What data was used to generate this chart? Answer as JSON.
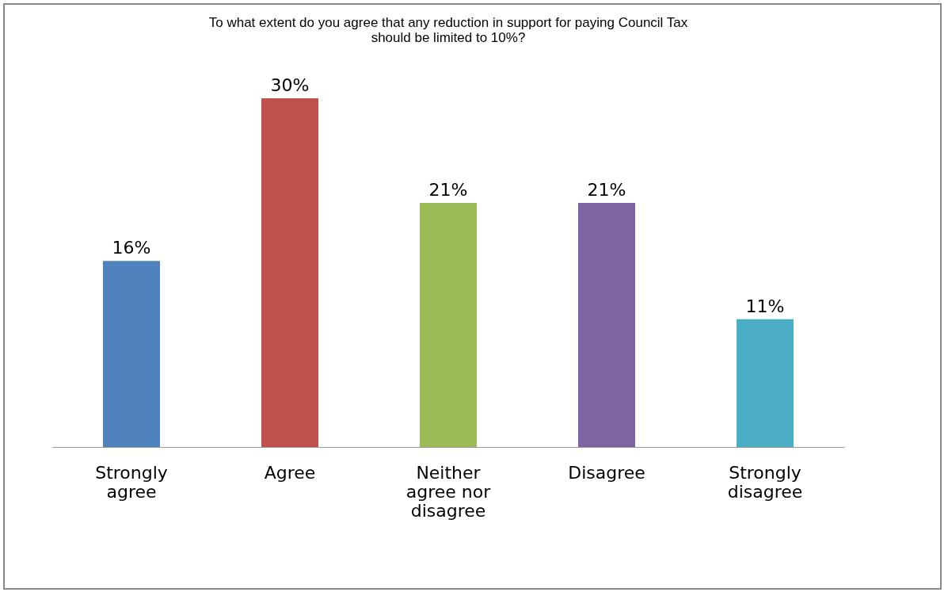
{
  "chart_data": {
    "type": "bar",
    "title": "To what extent do you agree that any reduction in support for paying Council Tax should be limited to 10%?",
    "categories": [
      "Strongly agree",
      "Agree",
      "Neither agree nor disagree",
      "Disagree",
      "Strongly disagree"
    ],
    "values": [
      16,
      30,
      21,
      21,
      11
    ],
    "colors": [
      "#4f81bd",
      "#c0504d",
      "#9bbb59",
      "#8064a2",
      "#4bacc6"
    ],
    "value_labels": [
      "16%",
      "30%",
      "21%",
      "21%",
      "11%"
    ]
  }
}
